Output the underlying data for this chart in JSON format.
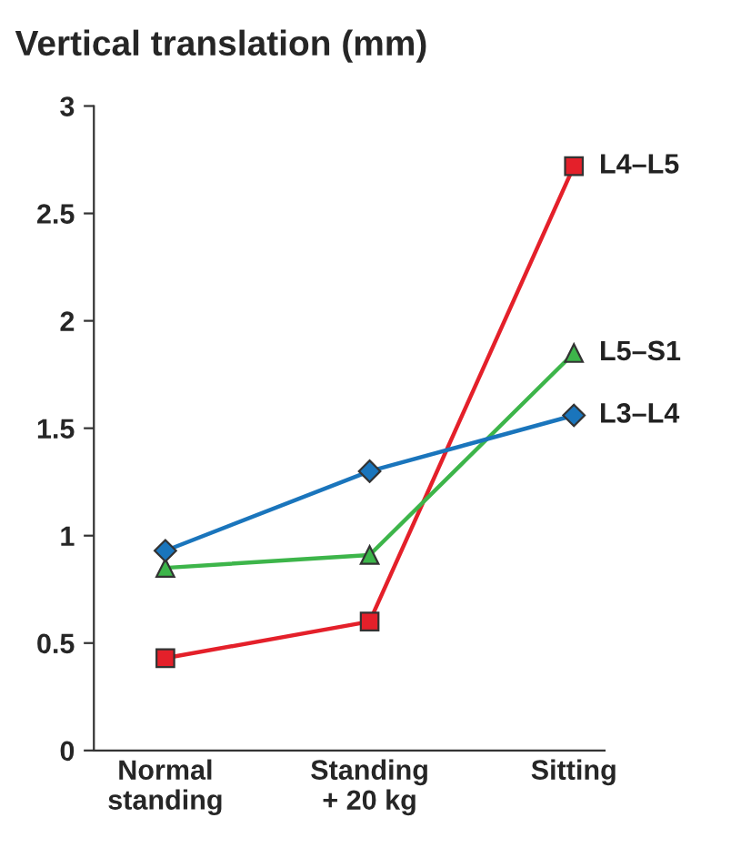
{
  "chart_data": {
    "type": "line",
    "title": "Vertical translation (mm)",
    "categories": [
      "Normal\nstanding",
      "Standing\n+ 20 kg",
      "Sitting"
    ],
    "series": [
      {
        "name": "L4–L5",
        "color": "#e4202a",
        "marker": "square",
        "values": [
          0.43,
          0.6,
          2.72
        ]
      },
      {
        "name": "L5–S1",
        "color": "#3db54a",
        "marker": "triangle",
        "values": [
          0.85,
          0.91,
          1.85
        ]
      },
      {
        "name": "L3–L4",
        "color": "#1a75bc",
        "marker": "diamond",
        "values": [
          0.93,
          1.3,
          1.56
        ]
      }
    ],
    "ylim": [
      0,
      3
    ],
    "yticks": [
      0,
      0.5,
      1,
      1.5,
      2,
      2.5,
      3
    ],
    "grid": false,
    "legend": false
  }
}
